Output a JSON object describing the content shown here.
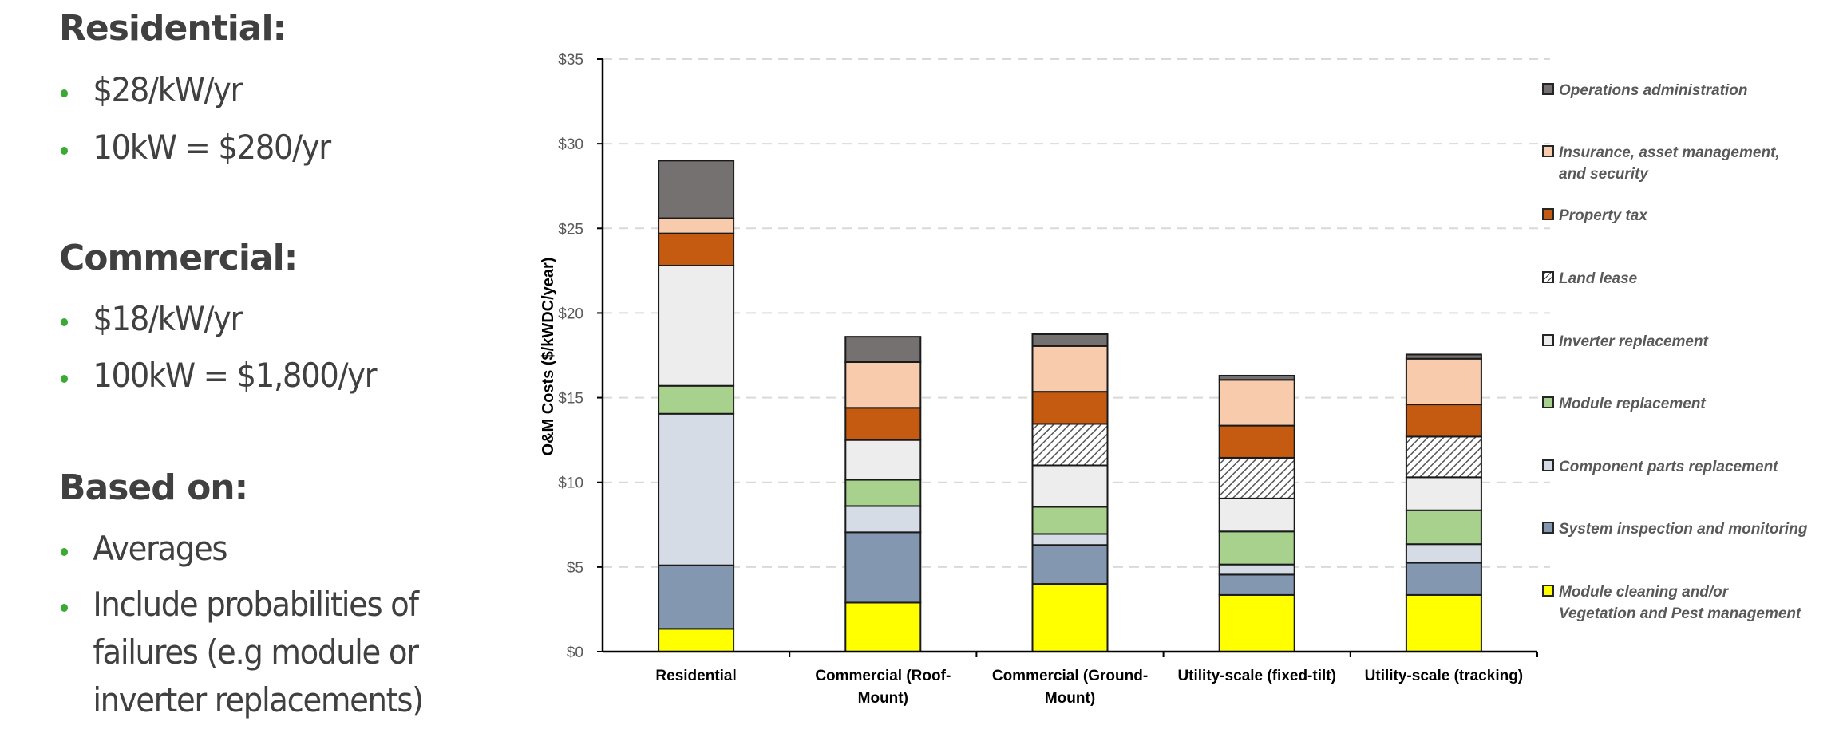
{
  "left_panel": {
    "bullet_color": "#3aaa35",
    "sections": [
      {
        "heading": "Residential:",
        "bullets": [
          [
            "$28/kW/yr"
          ],
          [
            "10kW = $280/yr"
          ]
        ]
      },
      {
        "heading": "Commercial:",
        "bullets": [
          [
            "$18/kW/yr"
          ],
          [
            "100kW = $1,800/yr"
          ]
        ]
      },
      {
        "heading": "Based on:",
        "bullets": [
          [
            "Averages"
          ],
          [
            "Include probabilities of",
            "failures (e.g module or",
            "inverter replacements)"
          ]
        ]
      }
    ]
  },
  "chart_data": {
    "type": "bar",
    "stacked": true,
    "title": "",
    "xlabel": "",
    "ylabel": "O&M Costs ($/kWDC/year)",
    "ylim": [
      0,
      35
    ],
    "yticks": [
      0,
      5,
      10,
      15,
      20,
      25,
      30,
      35
    ],
    "ytick_labels": [
      "$0",
      "$5",
      "$10",
      "$15",
      "$20",
      "$25",
      "$30",
      "$35"
    ],
    "grid": "horizontal-dashed",
    "legend_position": "right",
    "categories": [
      [
        "Residential"
      ],
      [
        "Commercial (Roof-",
        "Mount)"
      ],
      [
        "Commercial (Ground-",
        "Mount)"
      ],
      [
        "Utility-scale (fixed-tilt)"
      ],
      [
        "Utility-scale (tracking)"
      ]
    ],
    "series": [
      {
        "name": "Module cleaning and/or Vegetation and Pest management",
        "legend_lines": [
          "Module cleaning and/or",
          "Vegetation and Pest management"
        ],
        "color": "#ffff00",
        "pattern": "solid",
        "values": [
          1.35,
          2.9,
          4.0,
          3.35,
          3.35
        ]
      },
      {
        "name": "System inspection and monitoring",
        "legend_lines": [
          "System inspection and monitoring"
        ],
        "color": "#8497b0",
        "pattern": "solid",
        "values": [
          3.75,
          4.15,
          2.3,
          1.2,
          1.9
        ]
      },
      {
        "name": "Component parts replacement",
        "legend_lines": [
          "Component parts replacement"
        ],
        "color": "#d6dce5",
        "pattern": "solid",
        "values": [
          8.95,
          1.55,
          0.65,
          0.6,
          1.1
        ]
      },
      {
        "name": "Module replacement",
        "legend_lines": [
          "Module replacement"
        ],
        "color": "#a9d18e",
        "pattern": "solid",
        "values": [
          1.65,
          1.55,
          1.6,
          1.95,
          2.0
        ]
      },
      {
        "name": "Inverter replacement",
        "legend_lines": [
          "Inverter replacement"
        ],
        "color": "#ededed",
        "pattern": "solid",
        "values": [
          7.1,
          2.35,
          2.45,
          1.95,
          1.95
        ]
      },
      {
        "name": "Land lease",
        "legend_lines": [
          "Land lease"
        ],
        "color": "#ffffff",
        "pattern": "hatch",
        "values": [
          0,
          0,
          2.45,
          2.4,
          2.4
        ]
      },
      {
        "name": "Property tax",
        "legend_lines": [
          "Property tax"
        ],
        "color": "#c55a11",
        "pattern": "solid",
        "values": [
          1.9,
          1.9,
          1.9,
          1.9,
          1.9
        ]
      },
      {
        "name": "Insurance, asset management, and security",
        "legend_lines": [
          "Insurance, asset management,",
          "and security"
        ],
        "color": "#f8cbad",
        "pattern": "solid",
        "values": [
          0.9,
          2.7,
          2.7,
          2.7,
          2.7
        ]
      },
      {
        "name": "Operations administration",
        "legend_lines": [
          "Operations administration"
        ],
        "color": "#767171",
        "pattern": "solid",
        "values": [
          3.4,
          1.5,
          0.7,
          0.25,
          0.25
        ]
      }
    ]
  }
}
